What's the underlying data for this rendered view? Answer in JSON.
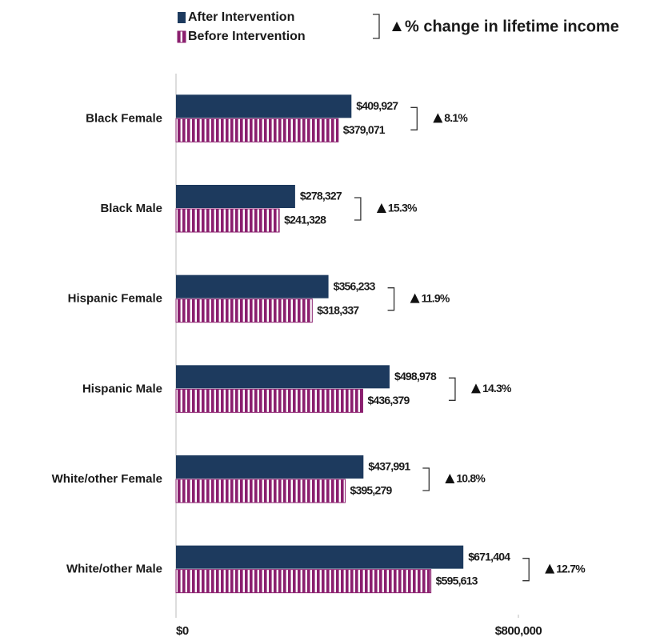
{
  "chart_data": {
    "type": "bar",
    "orientation": "horizontal",
    "categories": [
      "Black Female",
      "Black Male",
      "Hispanic Female",
      "Hispanic Male",
      "White/other Female",
      "White/other Male"
    ],
    "series": [
      {
        "name": "After Intervention",
        "color": "#1d3a5e",
        "pattern": "solid",
        "values": [
          409927,
          278327,
          356233,
          498978,
          437991,
          671404
        ],
        "value_labels": [
          "$409,927",
          "$278,327",
          "$356,233",
          "$498,978",
          "$437,991",
          "$671,404"
        ]
      },
      {
        "name": "Before Intervention",
        "color": "#8a1f6e",
        "pattern": "striped",
        "values": [
          379071,
          241328,
          318337,
          436379,
          395279,
          595613
        ],
        "value_labels": [
          "$379,071",
          "$241,328",
          "$318,337",
          "$436,379",
          "$395,279",
          "$595,613"
        ]
      }
    ],
    "change": {
      "name": "% change in lifetime income",
      "values": [
        8.1,
        15.3,
        11.9,
        14.3,
        10.8,
        12.7
      ],
      "value_labels": [
        "8.1%",
        "15.3%",
        "11.9%",
        "14.3%",
        "10.8%",
        "12.7%"
      ]
    },
    "xlim": [
      0,
      800000
    ],
    "xticks": [
      {
        "value": 0,
        "label": "$0"
      },
      {
        "value": 800000,
        "label": "$800,000"
      }
    ],
    "grid": false
  }
}
